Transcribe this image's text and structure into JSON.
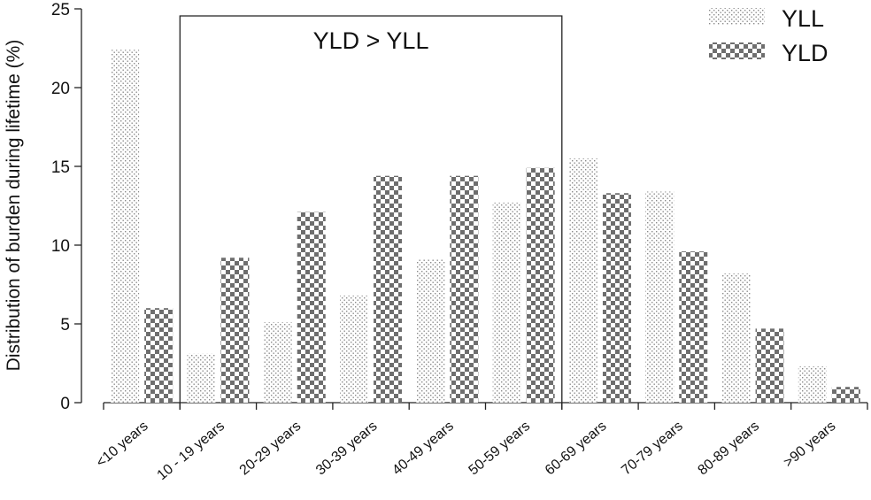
{
  "chart_data": {
    "type": "bar",
    "ylabel": "Distribution of burden during lifetime (%)",
    "xlabel": "",
    "ylim": [
      0,
      25
    ],
    "yticks": [
      "0",
      "5",
      "10",
      "15",
      "20",
      "25"
    ],
    "categories": [
      "<10 years",
      "10 - 19 years",
      "20-29 years",
      "30-39 years",
      "40-49 years",
      "50-59 years",
      "60-69 years",
      "70-79 years",
      "80-89 years",
      ">90 years"
    ],
    "series": [
      {
        "name": "YLL",
        "pattern": "dots",
        "color": "#777777",
        "values": [
          22.4,
          3.1,
          5.1,
          6.8,
          9.1,
          12.7,
          15.5,
          13.4,
          8.2,
          2.3
        ]
      },
      {
        "name": "YLD",
        "pattern": "checker",
        "color": "#6e6e6e",
        "values": [
          6.0,
          9.2,
          12.1,
          14.4,
          14.4,
          14.9,
          13.3,
          9.6,
          4.7,
          1.0
        ]
      }
    ],
    "annotation": {
      "text": "YLD > YLL",
      "from_category": 1,
      "to_category": 5
    },
    "legend_position": "top-right",
    "grid": false
  }
}
